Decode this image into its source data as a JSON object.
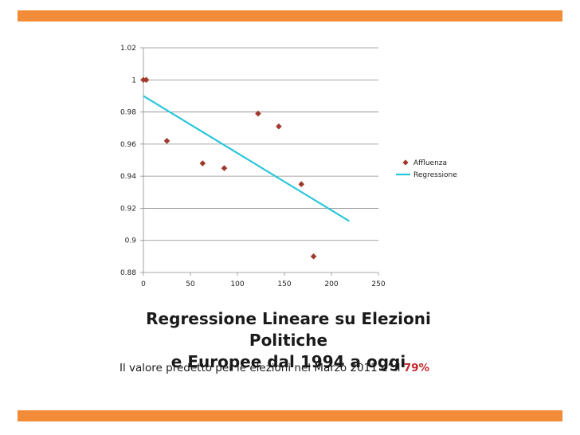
{
  "slide": {
    "title_line1": "Regressione Lineare su Elezioni Politiche",
    "title_line2": "e Europee dal 1994 a oggi",
    "subtitle_prefix": "Il valore predetto per le elezioni nel Marzo 2011 e’ il",
    "subtitle_value": "79%"
  },
  "colors": {
    "accent_bar": "#f28c38",
    "marker": "#a0392c",
    "regression": "#2cc6dc",
    "highlight": "#c0282d"
  },
  "chart_data": {
    "type": "scatter",
    "title": "",
    "xlabel": "",
    "ylabel": "",
    "xlim": [
      0,
      250
    ],
    "ylim": [
      0.88,
      1.02
    ],
    "x_ticks": [
      0,
      50,
      100,
      150,
      200,
      250
    ],
    "y_ticks": [
      0.88,
      0.9,
      0.92,
      0.94,
      0.96,
      0.98,
      1,
      1.02
    ],
    "x_tick_labels": [
      "0",
      "50",
      "100",
      "150",
      "200",
      "250"
    ],
    "y_tick_labels": [
      "0.88",
      "0.9",
      "0.92",
      "0.94",
      "0.96",
      "0.98",
      "1",
      "1.02"
    ],
    "grid": "horizontal",
    "legend_position": "right",
    "series": [
      {
        "name": "Affluenza",
        "kind": "scatter",
        "x": [
          0,
          3,
          25,
          63,
          86,
          122,
          144,
          168,
          181
        ],
        "y": [
          1.0,
          1.0,
          0.962,
          0.948,
          0.945,
          0.979,
          0.971,
          0.935,
          0.89
        ]
      },
      {
        "name": "Regressione",
        "kind": "line",
        "x": [
          0,
          219
        ],
        "y": [
          0.99,
          0.912
        ]
      }
    ]
  }
}
